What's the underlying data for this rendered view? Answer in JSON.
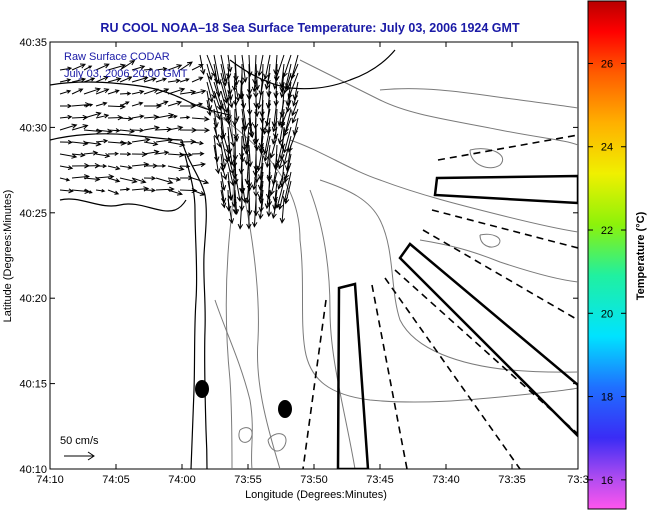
{
  "title": "RU COOL  NOAA–18  Sea Surface Temperature:  July 03, 2006 1924 GMT",
  "annotation": {
    "line1": "Raw Surface CODAR",
    "line2": "July 03, 2006 20:00 GMT"
  },
  "axes": {
    "xlabel": "Longitude (Degrees:Minutes)",
    "ylabel": "Latitude (Degrees:Minutes)",
    "xticks": [
      "74:10",
      "74:05",
      "74:00",
      "73:55",
      "73:50",
      "73:45",
      "73:40",
      "73:35",
      "73:3"
    ],
    "yticks": [
      "40:35",
      "40:30",
      "40:25",
      "40:20",
      "40:15",
      "40:10"
    ]
  },
  "colorbar": {
    "label": "Temperature (°C)",
    "ticks": [
      "26",
      "24",
      "22",
      "20",
      "18",
      "16"
    ],
    "tick_values": [
      26,
      24,
      22,
      20,
      18,
      16
    ],
    "range": [
      15.3,
      27.5
    ]
  },
  "scale": {
    "label": "50 cm/s"
  },
  "colors": {
    "title": "#1a1aa6",
    "coast": "#000000",
    "contour": "#7a7a7a",
    "arrows": "#000000"
  }
}
